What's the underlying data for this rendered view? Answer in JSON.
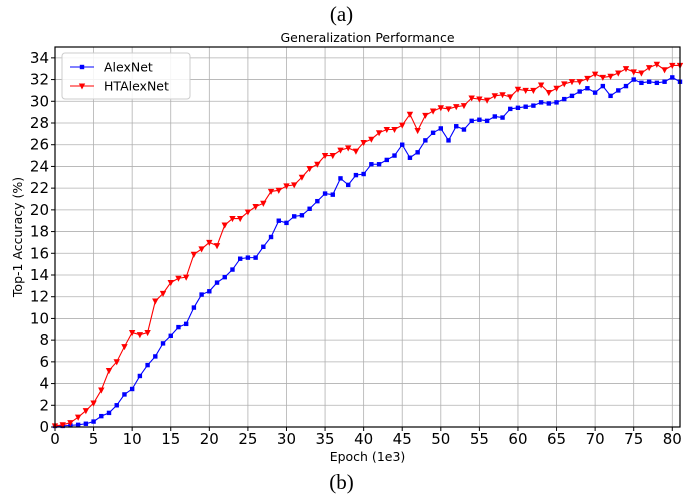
{
  "captions": {
    "top": "(a)",
    "bottom": "(b)"
  },
  "chart_data": {
    "type": "line",
    "title": "Generalization Performance",
    "xlabel": "Epoch (1e3)",
    "ylabel": "Top-1 Accuracy (%)",
    "xlim": [
      0,
      81
    ],
    "ylim": [
      0,
      35
    ],
    "xticks": [
      0,
      5,
      10,
      15,
      20,
      25,
      30,
      35,
      40,
      45,
      50,
      55,
      60,
      65,
      70,
      75,
      80
    ],
    "yticks": [
      0,
      2,
      4,
      6,
      8,
      10,
      12,
      14,
      16,
      18,
      20,
      22,
      24,
      26,
      28,
      30,
      32,
      34
    ],
    "grid": true,
    "legend_position": "top-left",
    "series": [
      {
        "name": "AlexNet",
        "color": "#0000ff",
        "marker": "square",
        "x": [
          0,
          1,
          2,
          3,
          4,
          5,
          6,
          7,
          8,
          9,
          10,
          11,
          12,
          13,
          14,
          15,
          16,
          17,
          18,
          19,
          20,
          21,
          22,
          23,
          24,
          25,
          26,
          27,
          28,
          29,
          30,
          31,
          32,
          33,
          34,
          35,
          36,
          37,
          38,
          39,
          40,
          41,
          42,
          43,
          44,
          45,
          46,
          47,
          48,
          49,
          50,
          51,
          52,
          53,
          54,
          55,
          56,
          57,
          58,
          59,
          60,
          61,
          62,
          63,
          64,
          65,
          66,
          67,
          68,
          69,
          70,
          71,
          72,
          73,
          74,
          75,
          76,
          77,
          78,
          79,
          80,
          81
        ],
        "values": [
          0.1,
          0.1,
          0.15,
          0.2,
          0.3,
          0.5,
          1.0,
          1.3,
          2.0,
          3.0,
          3.5,
          4.7,
          5.7,
          6.5,
          7.7,
          8.4,
          9.2,
          9.5,
          11.0,
          12.2,
          12.5,
          13.3,
          13.8,
          14.5,
          15.5,
          15.6,
          15.6,
          16.6,
          17.5,
          19.0,
          18.8,
          19.4,
          19.5,
          20.1,
          20.8,
          21.5,
          21.4,
          22.9,
          22.3,
          23.2,
          23.3,
          24.2,
          24.2,
          24.6,
          25.0,
          26.0,
          24.8,
          25.3,
          26.4,
          27.1,
          27.5,
          26.4,
          27.7,
          27.4,
          28.2,
          28.3,
          28.2,
          28.6,
          28.5,
          29.3,
          29.4,
          29.5,
          29.6,
          29.9,
          29.8,
          29.9,
          30.2,
          30.5,
          30.9,
          31.2,
          30.8,
          31.4,
          30.5,
          31.0,
          31.4,
          32.0,
          31.7,
          31.8,
          31.7,
          31.8,
          32.2,
          31.8
        ]
      },
      {
        "name": "HTAlexNet",
        "color": "#ff0000",
        "marker": "triangle-down",
        "x": [
          0,
          1,
          2,
          3,
          4,
          5,
          6,
          7,
          8,
          9,
          10,
          11,
          12,
          13,
          14,
          15,
          16,
          17,
          18,
          19,
          20,
          21,
          22,
          23,
          24,
          25,
          26,
          27,
          28,
          29,
          30,
          31,
          32,
          33,
          34,
          35,
          36,
          37,
          38,
          39,
          40,
          41,
          42,
          43,
          44,
          45,
          46,
          47,
          48,
          49,
          50,
          51,
          52,
          53,
          54,
          55,
          56,
          57,
          58,
          59,
          60,
          61,
          62,
          63,
          64,
          65,
          66,
          67,
          68,
          69,
          70,
          71,
          72,
          73,
          74,
          75,
          76,
          77,
          78,
          79,
          80,
          81
        ],
        "values": [
          0.1,
          0.2,
          0.4,
          0.9,
          1.5,
          2.2,
          3.4,
          5.2,
          6.0,
          7.4,
          8.7,
          8.5,
          8.7,
          11.6,
          12.3,
          13.3,
          13.7,
          13.8,
          15.9,
          16.4,
          17.0,
          16.7,
          18.6,
          19.2,
          19.2,
          19.8,
          20.3,
          20.6,
          21.7,
          21.8,
          22.2,
          22.3,
          23.0,
          23.8,
          24.2,
          25.0,
          25.0,
          25.5,
          25.7,
          25.4,
          26.2,
          26.5,
          27.1,
          27.4,
          27.4,
          27.8,
          28.8,
          27.3,
          28.7,
          29.1,
          29.4,
          29.3,
          29.5,
          29.6,
          30.3,
          30.2,
          30.1,
          30.5,
          30.6,
          30.4,
          31.1,
          31.0,
          31.0,
          31.5,
          30.8,
          31.2,
          31.6,
          31.8,
          31.8,
          32.1,
          32.5,
          32.2,
          32.3,
          32.6,
          33.0,
          32.7,
          32.6,
          33.1,
          33.4,
          32.9,
          33.3,
          33.3
        ]
      }
    ]
  }
}
